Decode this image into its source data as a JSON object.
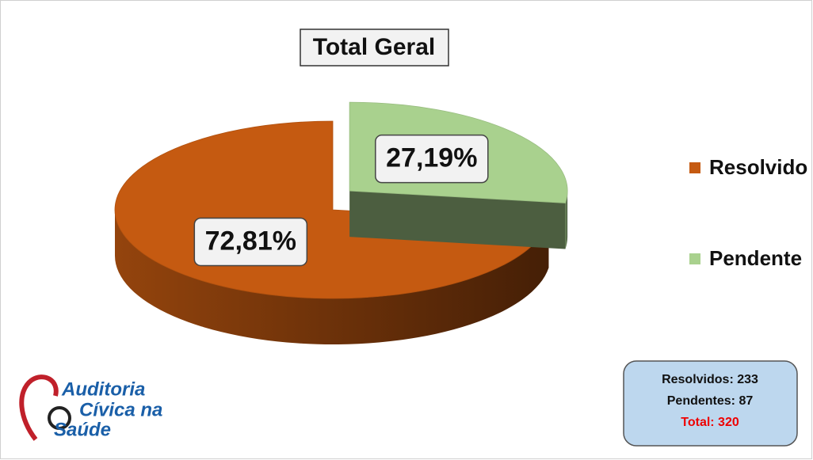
{
  "chart_data": {
    "type": "pie",
    "title": "Total Geral",
    "categories": [
      "Resolvido",
      "Pendente"
    ],
    "values": [
      72.81,
      27.19
    ],
    "value_labels": [
      "72,81%",
      "27,19%"
    ],
    "colors": [
      "#c55a11",
      "#a9d18e"
    ],
    "legend": "right",
    "annotations": [
      "Resolvidos: 233",
      "Pendentes: 87",
      "Total: 320"
    ],
    "logo": [
      "Auditoria",
      "Cívica na",
      "Saúde"
    ]
  }
}
